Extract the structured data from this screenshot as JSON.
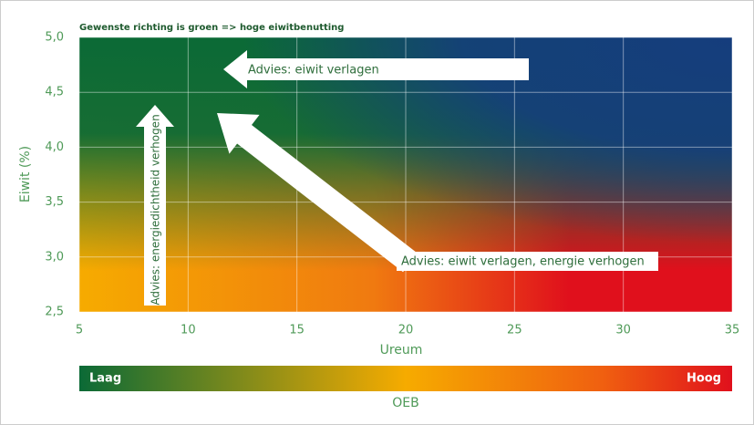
{
  "chart_data": {
    "type": "heatmap",
    "title": "Gewenste richting is groen => hoge eiwitbenutting",
    "x_label": "Ureum",
    "y_label": "Eiwit (%)",
    "xlim": [
      5,
      35
    ],
    "xticks": [
      5,
      10,
      15,
      20,
      25,
      30,
      35
    ],
    "ylim": [
      2.5,
      5
    ],
    "yticks": [
      {
        "value": 2.5,
        "label": "2,5"
      },
      {
        "value": 3,
        "label": "3,0"
      },
      {
        "value": 3.5,
        "label": "3,5"
      },
      {
        "value": 4,
        "label": "4,0"
      },
      {
        "value": 4.5,
        "label": "4,5"
      },
      {
        "value": 5,
        "label": "5,0"
      }
    ],
    "grid": true,
    "colors": {
      "green": "#0b6a36",
      "yellow": "#f6ab00",
      "red": "#e0101c",
      "blue": "#153d7d"
    },
    "annotations": [
      "Advies: eiwit verlagen",
      "Advies: energiedichtheid verhogen",
      "Advies: eiwit verlagen, energie verhogen"
    ],
    "colorbar": {
      "label": "OEB",
      "low": "Laag",
      "high": "Hoog"
    }
  }
}
